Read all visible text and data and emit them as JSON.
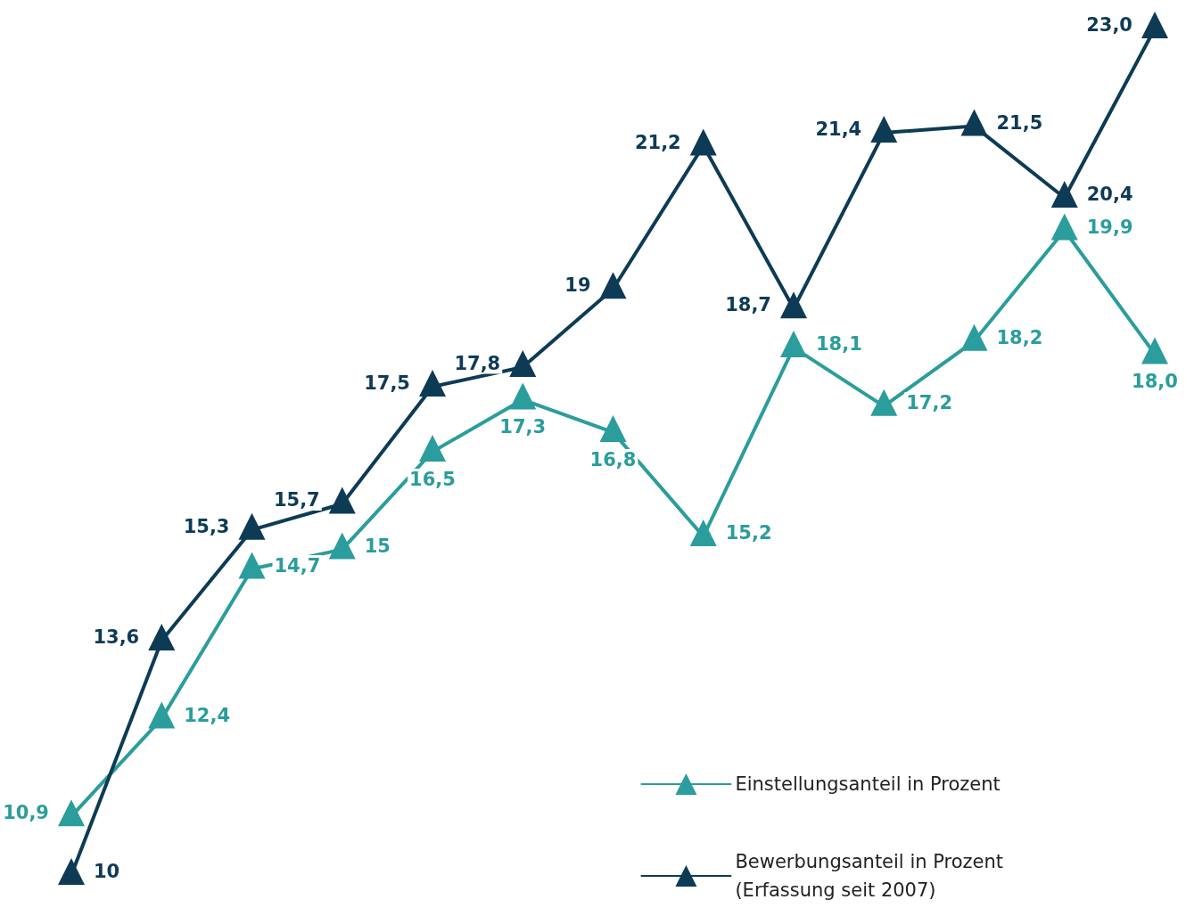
{
  "chart_data": {
    "type": "line",
    "categories": [
      null,
      null,
      null,
      null,
      null,
      null,
      null,
      null,
      null,
      null,
      null,
      null,
      null
    ],
    "series": [
      {
        "name": "Einstellungsanteil in Prozent",
        "color": "#2a9d9c",
        "values": [
          10.9,
          12.4,
          14.7,
          15,
          16.5,
          17.3,
          16.8,
          15.2,
          18.1,
          17.2,
          18.2,
          19.9,
          18.0
        ],
        "value_labels": [
          "10,9",
          "12,4",
          "14,7",
          "15",
          "16,5",
          "17,3",
          "16,8",
          "15,2",
          "18,1",
          "17,2",
          "18,2",
          "19,9",
          "18,0"
        ]
      },
      {
        "name": "Bewerbungsanteil in Prozent\n(Erfassung seit 2007)",
        "color": "#0d3b56",
        "values": [
          10,
          13.6,
          15.3,
          15.7,
          17.5,
          17.8,
          19,
          21.2,
          18.7,
          21.4,
          21.5,
          20.4,
          23.0
        ],
        "value_labels": [
          "10",
          "13,6",
          "15,3",
          "15,7",
          "17,5",
          "17,8",
          "19",
          "21,2",
          "18,7",
          "21,4",
          "21,5",
          "20,4",
          "23,0"
        ]
      }
    ],
    "marker": "triangle",
    "line_style": "solid",
    "grid": false,
    "tick_labels": false,
    "legend": "bottom right"
  }
}
